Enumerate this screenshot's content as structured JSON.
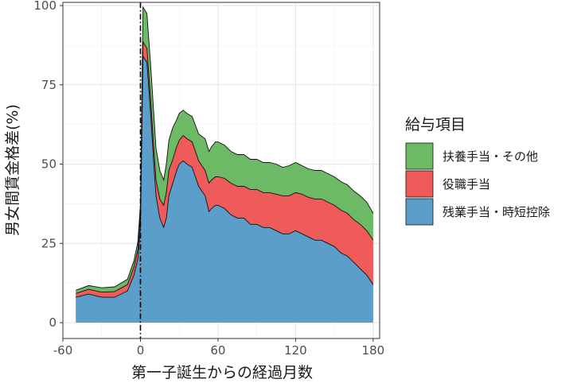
{
  "chart_data": {
    "type": "area",
    "stacked": true,
    "xlabel": "第一子誕生からの経過月数",
    "ylabel": "男女間賃金格差(%)",
    "xlim": [
      -60,
      185
    ],
    "ylim": [
      -5,
      101
    ],
    "xticks": [
      -60,
      0,
      60,
      120,
      180
    ],
    "xtick_labels": [
      "-60",
      "0",
      "60",
      "120",
      "180"
    ],
    "yticks": [
      0,
      25,
      50,
      75,
      100
    ],
    "ytick_labels": [
      "0",
      "25",
      "50",
      "75",
      "100"
    ],
    "grid": true,
    "vline": {
      "x": 0,
      "style": "dash-dot"
    },
    "legend": {
      "title": "給与項目",
      "position": "right"
    },
    "x": [
      -50,
      -40,
      -30,
      -20,
      -10,
      -5,
      -2,
      0,
      2,
      5,
      8,
      10,
      12,
      15,
      18,
      20,
      22,
      25,
      28,
      30,
      33,
      36,
      40,
      45,
      50,
      53,
      55,
      58,
      60,
      65,
      70,
      75,
      80,
      85,
      90,
      95,
      100,
      105,
      110,
      115,
      120,
      125,
      130,
      135,
      140,
      145,
      150,
      155,
      160,
      165,
      170,
      175,
      180
    ],
    "series": [
      {
        "name": "残業手当・時短控除",
        "color": "#5b9ec9",
        "values": [
          8,
          9,
          8,
          8,
          10,
          15,
          20,
          30,
          84,
          82,
          65,
          52,
          40,
          33,
          30,
          33,
          40,
          44,
          48,
          50,
          51,
          50,
          49,
          43,
          40,
          35,
          36,
          37,
          37,
          36,
          34,
          33,
          33,
          31,
          31,
          30,
          30,
          29,
          28,
          28,
          29,
          28,
          27,
          26,
          26,
          25,
          24,
          22,
          21,
          19,
          17,
          15,
          12
        ]
      },
      {
        "name": "役職手当",
        "color": "#ef5b5b",
        "values": [
          1.2,
          1.5,
          1.6,
          1.8,
          2.0,
          2.5,
          3.0,
          4.5,
          4.5,
          4.5,
          4.5,
          5.0,
          5.0,
          6.0,
          7.0,
          8.0,
          8.0,
          7.5,
          7.5,
          7.5,
          8.0,
          8.0,
          8.0,
          8.0,
          8.0,
          9.0,
          9.0,
          9.0,
          9.0,
          9.5,
          10.0,
          10.0,
          10.0,
          11.0,
          11.0,
          11.0,
          11.0,
          11.5,
          12.0,
          12.0,
          12.0,
          12.5,
          12.5,
          13.0,
          13.0,
          13.0,
          13.0,
          13.5,
          13.5,
          13.5,
          14.0,
          14.0,
          14.0
        ]
      },
      {
        "name": "扶養手当・その他",
        "color": "#6cba65",
        "values": [
          1.0,
          1.2,
          1.4,
          1.5,
          1.7,
          2.0,
          2.5,
          3.0,
          11.0,
          11.0,
          11.0,
          11.0,
          10.0,
          9.0,
          8.0,
          9.0,
          9.5,
          10.0,
          8.5,
          8.5,
          8.0,
          8.0,
          8.0,
          8.5,
          10.0,
          10.0,
          10.5,
          11.0,
          11.0,
          10.5,
          10.0,
          10.0,
          10.0,
          9.5,
          9.5,
          9.5,
          9.5,
          9.5,
          9.0,
          9.5,
          9.5,
          9.0,
          9.0,
          9.0,
          9.0,
          9.0,
          9.0,
          9.0,
          9.0,
          9.0,
          9.0,
          9.0,
          8.5
        ]
      }
    ]
  }
}
